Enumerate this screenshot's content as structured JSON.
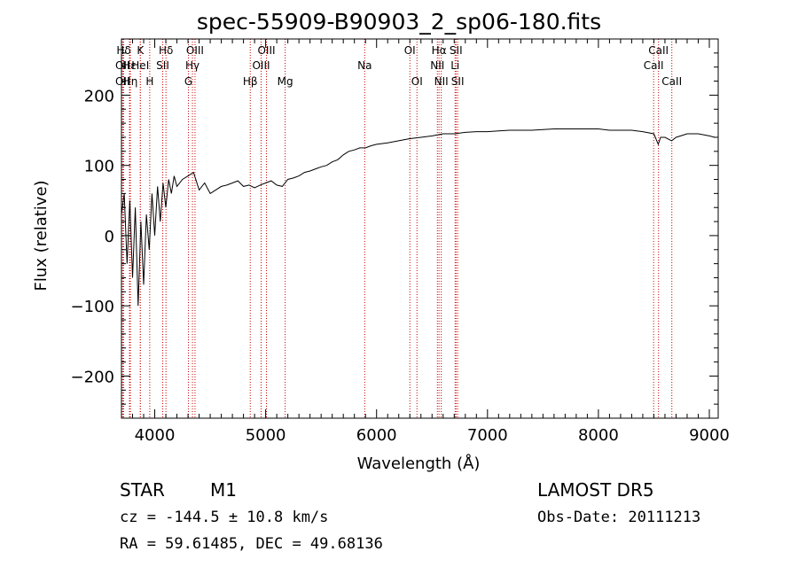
{
  "chart_data": {
    "type": "line",
    "title": "spec-55909-B90903_2_sp06-180.fits",
    "xlabel": "Wavelength (Å)",
    "ylabel": "Flux (relative)",
    "xlim": [
      3700,
      9080
    ],
    "ylim": [
      -260,
      280
    ],
    "xticks": [
      4000,
      5000,
      6000,
      7000,
      8000,
      9000
    ],
    "yticks": [
      -200,
      -100,
      0,
      100,
      200
    ],
    "grid": false,
    "series": [
      {
        "color": "#000000",
        "x": [
          3700,
          3725,
          3750,
          3775,
          3800,
          3825,
          3850,
          3875,
          3900,
          3925,
          3950,
          3975,
          4000,
          4025,
          4050,
          4075,
          4100,
          4125,
          4150,
          4175,
          4200,
          4250,
          4300,
          4350,
          4400,
          4450,
          4500,
          4550,
          4600,
          4650,
          4700,
          4750,
          4800,
          4850,
          4900,
          4950,
          5000,
          5050,
          5100,
          5150,
          5200,
          5250,
          5300,
          5350,
          5400,
          5450,
          5500,
          5550,
          5600,
          5650,
          5700,
          5750,
          5800,
          5850,
          5900,
          5950,
          6000,
          6100,
          6200,
          6300,
          6400,
          6500,
          6600,
          6700,
          6800,
          6900,
          7000,
          7100,
          7200,
          7300,
          7400,
          7500,
          7600,
          7700,
          7800,
          7900,
          8000,
          8100,
          8200,
          8300,
          8400,
          8500,
          8540,
          8560,
          8600,
          8660,
          8700,
          8800,
          8900,
          9000,
          9050
        ],
        "y": [
          30,
          60,
          -40,
          50,
          -60,
          40,
          -100,
          20,
          -70,
          30,
          -20,
          60,
          0,
          70,
          20,
          75,
          40,
          80,
          60,
          85,
          70,
          80,
          85,
          90,
          65,
          75,
          60,
          65,
          70,
          72,
          75,
          78,
          70,
          72,
          68,
          72,
          75,
          78,
          72,
          70,
          80,
          82,
          85,
          90,
          92,
          95,
          98,
          100,
          105,
          108,
          115,
          120,
          122,
          125,
          125,
          128,
          130,
          132,
          135,
          138,
          140,
          142,
          145,
          145,
          147,
          148,
          148,
          149,
          150,
          150,
          150,
          151,
          152,
          152,
          152,
          152,
          152,
          150,
          150,
          150,
          148,
          145,
          130,
          140,
          140,
          135,
          140,
          145,
          145,
          142,
          140
        ]
      }
    ],
    "line_labels": [
      {
        "x": 3720,
        "row": 1,
        "label": "Hδ"
      },
      {
        "x": 3710,
        "row": 2,
        "label": "OII"
      },
      {
        "x": 3710,
        "row": 3,
        "label": "OII"
      },
      {
        "x": 3772,
        "row": 2,
        "label": "Hε"
      },
      {
        "x": 3780,
        "row": 3,
        "label": "Hη"
      },
      {
        "x": 3870,
        "row": 1,
        "label": "K"
      },
      {
        "x": 3870,
        "row": 2,
        "label": "HeI"
      },
      {
        "x": 3955,
        "row": 3,
        "label": "H"
      },
      {
        "x": 4101,
        "row": 1,
        "label": "Hδ"
      },
      {
        "x": 4072,
        "row": 2,
        "label": "SII"
      },
      {
        "x": 4363,
        "row": 1,
        "label": "OIII"
      },
      {
        "x": 4340,
        "row": 2,
        "label": "Hγ"
      },
      {
        "x": 4304,
        "row": 3,
        "label": "G"
      },
      {
        "x": 4861,
        "row": 3,
        "label": "Hβ"
      },
      {
        "x": 5007,
        "row": 1,
        "label": "OIII"
      },
      {
        "x": 4959,
        "row": 2,
        "label": "OIII"
      },
      {
        "x": 5176,
        "row": 3,
        "label": "Mg"
      },
      {
        "x": 5893,
        "row": 2,
        "label": "Na"
      },
      {
        "x": 6300,
        "row": 1,
        "label": "OI"
      },
      {
        "x": 6364,
        "row": 3,
        "label": "OI"
      },
      {
        "x": 6563,
        "row": 1,
        "label": "Hα"
      },
      {
        "x": 6548,
        "row": 2,
        "label": "NII"
      },
      {
        "x": 6583,
        "row": 3,
        "label": "NII"
      },
      {
        "x": 6716,
        "row": 1,
        "label": "SII"
      },
      {
        "x": 6708,
        "row": 2,
        "label": "Li"
      },
      {
        "x": 6731,
        "row": 3,
        "label": "SII"
      },
      {
        "x": 8542,
        "row": 1,
        "label": "CaII"
      },
      {
        "x": 8498,
        "row": 2,
        "label": "CaII"
      },
      {
        "x": 8662,
        "row": 3,
        "label": "CaII"
      }
    ]
  },
  "info": {
    "object_class": "STAR",
    "subclass": "M1",
    "survey": "LAMOST DR5",
    "cz": "cz = -144.5 ± 10.8 km/s",
    "obs_date": "Obs-Date: 20111213",
    "coords": "RA =  59.61485, DEC =  49.68136"
  }
}
